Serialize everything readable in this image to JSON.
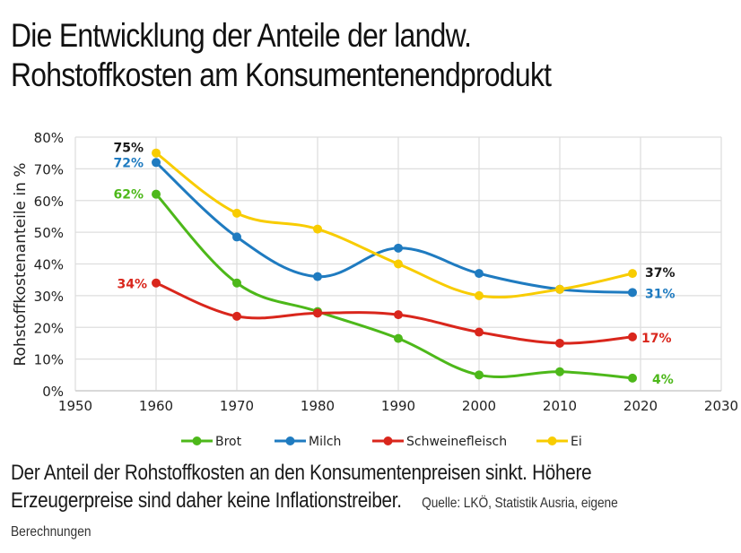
{
  "title": {
    "line1": "Die Entwicklung der Anteile der landw.",
    "line2": "Rohstoffkosten am Konsumentenendprodukt"
  },
  "caption": {
    "text_line1": "Der Anteil der Rohstoffkosten an den Konsumentenpreisen sinkt. Höhere",
    "text_line2": "Erzeugerpreise sind daher keine Inflationstreiber.",
    "source_part1": "Quelle: LKÖ, Statistik Ausria, eigene",
    "source_part2": "Berechnungen"
  },
  "chart_data": {
    "type": "line",
    "title": "Die Entwicklung der Anteile der landw. Rohstoffkosten am Konsumentenendprodukt",
    "xlabel": "",
    "ylabel": "Rohstoffkostenanteile in %",
    "xlim": [
      1950,
      2030
    ],
    "ylim": [
      0,
      80
    ],
    "x_ticks": [
      1950,
      1960,
      1970,
      1980,
      1990,
      2000,
      2010,
      2020,
      2030
    ],
    "x_tick_labels": [
      "1950",
      "1960",
      "1970",
      "1980",
      "1990",
      "2000",
      "2010",
      "2020",
      "2030"
    ],
    "y_ticks": [
      0,
      10,
      20,
      30,
      40,
      50,
      60,
      70,
      80
    ],
    "y_tick_labels": [
      "0%",
      "10%",
      "20%",
      "30%",
      "40%",
      "50%",
      "60%",
      "70%",
      "80%"
    ],
    "grid": true,
    "smooth": true,
    "legend": "bottom",
    "x": [
      1960,
      1970,
      1980,
      1990,
      2000,
      2010,
      2019
    ],
    "series": [
      {
        "name": "Brot",
        "color": "#4db81a",
        "values": [
          62,
          34,
          25,
          16.5,
          5,
          6,
          4
        ],
        "start_label": "62%",
        "start_label_color": "#4db81a",
        "end_label": "4%",
        "end_label_color": "#4db81a"
      },
      {
        "name": "Milch",
        "color": "#1f7bc0",
        "values": [
          72,
          48.5,
          36,
          45,
          37,
          32,
          31
        ],
        "start_label": "72%",
        "start_label_color": "#1f7bc0",
        "end_label": "31%",
        "end_label_color": "#1f7bc0"
      },
      {
        "name": "Schweinefleisch",
        "color": "#d9261c",
        "values": [
          34,
          23.5,
          24.5,
          24,
          18.5,
          15,
          17
        ],
        "start_label": "34%",
        "start_label_color": "#d9261c",
        "end_label": "17%",
        "end_label_color": "#d9261c"
      },
      {
        "name": "Ei",
        "color": "#f8cc00",
        "values": [
          75,
          56,
          51,
          40,
          30,
          32,
          37
        ],
        "start_label": "75%",
        "start_label_color": "#1a1a1a",
        "end_label": "37%",
        "end_label_color": "#1a1a1a"
      }
    ]
  }
}
